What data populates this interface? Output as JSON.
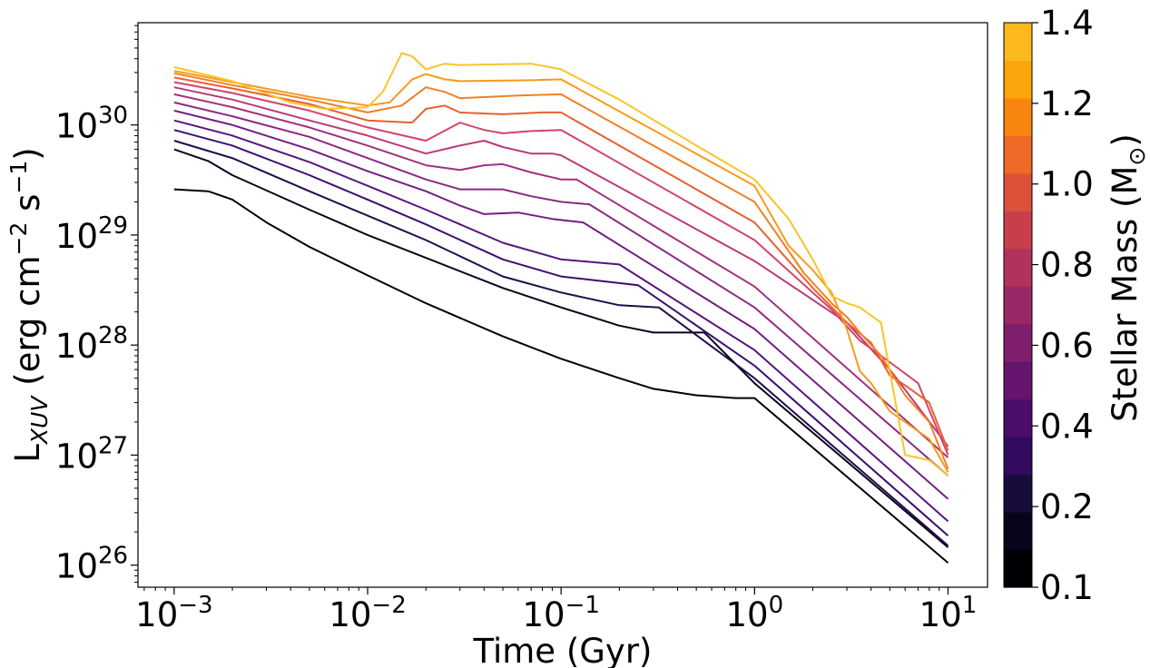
{
  "chart_data": {
    "type": "line",
    "title": "",
    "xlabel": "Time (Gyr)",
    "ylabel": {
      "main": "L",
      "sub": "XUV",
      "rest": " (erg cm",
      "exp1": "−2",
      "mid": " s",
      "exp2": "−1",
      "end": ")"
    },
    "xscale": "log",
    "yscale": "log",
    "xlim": [
      0.00065,
      16
    ],
    "ylim": [
      6.3e+25,
      8.5e+30
    ],
    "x_ticks": [
      {
        "value": 0.001,
        "base": "10",
        "exp": "−3"
      },
      {
        "value": 0.01,
        "base": "10",
        "exp": "−2"
      },
      {
        "value": 0.1,
        "base": "10",
        "exp": "−1"
      },
      {
        "value": 1,
        "base": "10",
        "exp": "0"
      },
      {
        "value": 10,
        "base": "10",
        "exp": "1"
      }
    ],
    "y_ticks": [
      {
        "value": 1e+26,
        "base": "10",
        "exp": "26"
      },
      {
        "value": 1e+27,
        "base": "10",
        "exp": "27"
      },
      {
        "value": 1e+28,
        "base": "10",
        "exp": "28"
      },
      {
        "value": 1e+29,
        "base": "10",
        "exp": "29"
      },
      {
        "value": 1e+30,
        "base": "10",
        "exp": "30"
      }
    ],
    "grid": false,
    "legend": "none",
    "colorbar": {
      "label_main": "Stellar Mass (M",
      "label_sub": "⊙",
      "label_end": ")",
      "range": [
        0.1,
        1.4
      ],
      "ticks": [
        "0.1",
        "0.2",
        "0.4",
        "0.6",
        "0.8",
        "1.0",
        "1.2",
        "1.4"
      ],
      "tick_values": [
        0.1,
        0.2,
        0.4,
        0.6,
        0.8,
        1.0,
        1.2,
        1.4
      ],
      "colors": [
        "#000004",
        "#07051b",
        "#180c3c",
        "#320a5e",
        "#4b0c6b",
        "#65156e",
        "#7e1e6c",
        "#982766",
        "#b1325a",
        "#c83f4b",
        "#dd513a",
        "#ee6925",
        "#f8850f",
        "#fca50a",
        "#fbb91e"
      ]
    },
    "series": [
      {
        "mass": 0.1,
        "color": "#000004",
        "points": [
          [
            0.001,
            2.6e+29
          ],
          [
            0.0015,
            2.5e+29
          ],
          [
            0.002,
            2.1e+29
          ],
          [
            0.003,
            1.3e+29
          ],
          [
            0.005,
            7.8e+28
          ],
          [
            0.01,
            4.3e+28
          ],
          [
            0.02,
            2.4e+28
          ],
          [
            0.05,
            1.2e+28
          ],
          [
            0.1,
            7.5e+27
          ],
          [
            0.2,
            5e+27
          ],
          [
            0.3,
            4e+27
          ],
          [
            0.5,
            3.5e+27
          ],
          [
            0.8,
            3.3e+27
          ],
          [
            1.0,
            3.3e+27
          ],
          [
            10,
            1.05e+26
          ]
        ]
      },
      {
        "mass": 0.2,
        "color": "#07051b",
        "points": [
          [
            0.001,
            6e+29
          ],
          [
            0.0015,
            4.7e+29
          ],
          [
            0.002,
            3.5e+29
          ],
          [
            0.005,
            1.7e+29
          ],
          [
            0.01,
            1e+29
          ],
          [
            0.02,
            6.2e+28
          ],
          [
            0.05,
            3.3e+28
          ],
          [
            0.1,
            2.2e+28
          ],
          [
            0.2,
            1.5e+28
          ],
          [
            0.3,
            1.3e+28
          ],
          [
            0.45,
            1.3e+28
          ],
          [
            0.55,
            1.3e+28
          ],
          [
            1.0,
            4.5e+27
          ],
          [
            10,
            1.45e+26
          ]
        ]
      },
      {
        "mass": 0.3,
        "color": "#210c4a",
        "points": [
          [
            0.001,
            7.2e+29
          ],
          [
            0.002,
            5e+29
          ],
          [
            0.005,
            2.5e+29
          ],
          [
            0.01,
            1.5e+29
          ],
          [
            0.02,
            9e+28
          ],
          [
            0.05,
            4.2e+28
          ],
          [
            0.1,
            3e+28
          ],
          [
            0.2,
            2.3e+28
          ],
          [
            0.32,
            2.2e+28
          ],
          [
            1.0,
            5e+27
          ],
          [
            10,
            1.5e+26
          ]
        ]
      },
      {
        "mass": 0.4,
        "color": "#3b0f70",
        "points": [
          [
            0.001,
            9e+29
          ],
          [
            0.002,
            6.5e+29
          ],
          [
            0.005,
            3.5e+29
          ],
          [
            0.01,
            2.1e+29
          ],
          [
            0.02,
            1.25e+29
          ],
          [
            0.05,
            6e+28
          ],
          [
            0.1,
            4.2e+28
          ],
          [
            0.25,
            3.5e+28
          ],
          [
            1.0,
            6.5e+27
          ],
          [
            10,
            1.85e+26
          ]
        ]
      },
      {
        "mass": 0.5,
        "color": "#57157e",
        "points": [
          [
            0.001,
            1.1e+30
          ],
          [
            0.002,
            8e+29
          ],
          [
            0.005,
            4.6e+29
          ],
          [
            0.01,
            2.8e+29
          ],
          [
            0.02,
            1.7e+29
          ],
          [
            0.05,
            8.5e+28
          ],
          [
            0.1,
            6e+28
          ],
          [
            0.2,
            5.4e+28
          ],
          [
            1.0,
            9e+27
          ],
          [
            10,
            2.5e+26
          ]
        ]
      },
      {
        "mass": 0.6,
        "color": "#721f81",
        "points": [
          [
            0.001,
            1.35e+30
          ],
          [
            0.002,
            1e+30
          ],
          [
            0.005,
            6e+29
          ],
          [
            0.01,
            3.8e+29
          ],
          [
            0.02,
            2.5e+29
          ],
          [
            0.03,
            1.85e+29
          ],
          [
            0.04,
            1.55e+29
          ],
          [
            0.06,
            1.6e+29
          ],
          [
            0.09,
            1.4e+29
          ],
          [
            0.13,
            1.3e+29
          ],
          [
            1.0,
            1.4e+28
          ],
          [
            10,
            4e+26
          ]
        ]
      },
      {
        "mass": 0.7,
        "color": "#8c2981",
        "points": [
          [
            0.001,
            1.6e+30
          ],
          [
            0.002,
            1.2e+30
          ],
          [
            0.005,
            7.8e+29
          ],
          [
            0.01,
            5e+29
          ],
          [
            0.02,
            3.2e+29
          ],
          [
            0.03,
            2.6e+29
          ],
          [
            0.05,
            2.6e+29
          ],
          [
            0.07,
            2.25e+29
          ],
          [
            0.1,
            2e+29
          ],
          [
            0.14,
            1.9e+29
          ],
          [
            1.0,
            2.2e+28
          ],
          [
            10,
            6.5e+26
          ]
        ]
      },
      {
        "mass": 0.8,
        "color": "#a3307e",
        "points": [
          [
            0.001,
            1.9e+30
          ],
          [
            0.002,
            1.45e+30
          ],
          [
            0.005,
            9.5e+29
          ],
          [
            0.01,
            6.5e+29
          ],
          [
            0.02,
            4.3e+29
          ],
          [
            0.03,
            3.9e+29
          ],
          [
            0.04,
            4.3e+29
          ],
          [
            0.05,
            4.4e+29
          ],
          [
            0.07,
            3.7e+29
          ],
          [
            0.1,
            3.2e+29
          ],
          [
            0.12,
            3.2e+29
          ],
          [
            1.0,
            3.4e+28
          ],
          [
            10,
            9.5e+26
          ]
        ]
      },
      {
        "mass": 0.9,
        "color": "#bc3978",
        "points": [
          [
            0.001,
            2.2e+30
          ],
          [
            0.002,
            1.7e+30
          ],
          [
            0.005,
            1.1e+30
          ],
          [
            0.01,
            8e+29
          ],
          [
            0.02,
            5.5e+29
          ],
          [
            0.03,
            6.5e+29
          ],
          [
            0.04,
            7.2e+29
          ],
          [
            0.05,
            6.3e+29
          ],
          [
            0.07,
            5.5e+29
          ],
          [
            0.09,
            5.5e+29
          ],
          [
            0.1,
            5.3e+29
          ],
          [
            1.0,
            5.8e+28
          ],
          [
            3.0,
            1.6e+28
          ],
          [
            5.0,
            6e+27
          ],
          [
            10,
            1.2e+27
          ]
        ]
      },
      {
        "mass": 1.0,
        "color": "#d3436e",
        "points": [
          [
            0.001,
            2.45e+30
          ],
          [
            0.002,
            1.95e+30
          ],
          [
            0.005,
            1.35e+30
          ],
          [
            0.01,
            9.5e+29
          ],
          [
            0.02,
            7.2e+29
          ],
          [
            0.03,
            1.05e+30
          ],
          [
            0.04,
            9e+29
          ],
          [
            0.05,
            8.4e+29
          ],
          [
            0.07,
            8.8e+29
          ],
          [
            0.1,
            9e+29
          ],
          [
            1.0,
            9e+28
          ],
          [
            2.5,
            2.1e+28
          ],
          [
            3.5,
            1.1e+28
          ],
          [
            5.0,
            7e+27
          ],
          [
            7.0,
            4.5e+27
          ],
          [
            10,
            1e+27
          ]
        ]
      },
      {
        "mass": 1.1,
        "color": "#e8602d",
        "points": [
          [
            0.001,
            2.7e+30
          ],
          [
            0.002,
            2.15e+30
          ],
          [
            0.005,
            1.55e+30
          ],
          [
            0.01,
            1.1e+30
          ],
          [
            0.017,
            1.05e+30
          ],
          [
            0.02,
            1.4e+30
          ],
          [
            0.025,
            1.5e+30
          ],
          [
            0.03,
            1.3e+30
          ],
          [
            0.05,
            1.25e+30
          ],
          [
            0.08,
            1.3e+30
          ],
          [
            0.1,
            1.3e+30
          ],
          [
            1.0,
            1.3e+29
          ],
          [
            2.0,
            3.3e+28
          ],
          [
            3.0,
            1.6e+28
          ],
          [
            4.0,
            1.05e+28
          ],
          [
            5.0,
            5.3e+27
          ],
          [
            6.0,
            4.3e+27
          ],
          [
            8.0,
            3e+27
          ],
          [
            10,
            1.1e+27
          ]
        ]
      },
      {
        "mass": 1.2,
        "color": "#f28022",
        "points": [
          [
            0.001,
            2.95e+30
          ],
          [
            0.002,
            2.3e+30
          ],
          [
            0.005,
            1.7e+30
          ],
          [
            0.01,
            1.3e+30
          ],
          [
            0.015,
            1.5e+30
          ],
          [
            0.02,
            2.2e+30
          ],
          [
            0.025,
            2e+30
          ],
          [
            0.03,
            1.75e+30
          ],
          [
            0.06,
            1.85e+30
          ],
          [
            0.1,
            1.9e+30
          ],
          [
            1.0,
            2e+29
          ],
          [
            1.8,
            4.5e+28
          ],
          [
            2.5,
            2.4e+28
          ],
          [
            3.0,
            1.8e+28
          ],
          [
            3.5,
            1.3e+28
          ],
          [
            4.5,
            8e+27
          ],
          [
            6.0,
            3.5e+27
          ],
          [
            8.0,
            2e+27
          ],
          [
            10,
            7.5e+26
          ]
        ]
      },
      {
        "mass": 1.3,
        "color": "#f89a1c",
        "points": [
          [
            0.001,
            3.1e+30
          ],
          [
            0.002,
            2.45e+30
          ],
          [
            0.005,
            1.8e+30
          ],
          [
            0.01,
            1.5e+30
          ],
          [
            0.013,
            1.6e+30
          ],
          [
            0.017,
            2.6e+30
          ],
          [
            0.02,
            2.9e+30
          ],
          [
            0.025,
            2.6e+30
          ],
          [
            0.03,
            2.5e+30
          ],
          [
            0.07,
            2.55e+30
          ],
          [
            0.1,
            2.6e+30
          ],
          [
            1.0,
            2.8e+29
          ],
          [
            1.5,
            8e+28
          ],
          [
            2.0,
            4.8e+28
          ],
          [
            2.5,
            3e+28
          ],
          [
            3.0,
            1.4e+28
          ],
          [
            3.5,
            5.8e+27
          ],
          [
            4.0,
            4.5e+27
          ],
          [
            5.0,
            2.5e+27
          ],
          [
            8.0,
            1.4e+27
          ],
          [
            10,
            7e+26
          ]
        ]
      },
      {
        "mass": 1.4,
        "color": "#f8c52a",
        "points": [
          [
            0.001,
            3.35e+30
          ],
          [
            0.002,
            2.5e+30
          ],
          [
            0.004,
            1.6e+30
          ],
          [
            0.006,
            1.4e+30
          ],
          [
            0.01,
            1.45e+30
          ],
          [
            0.012,
            2e+30
          ],
          [
            0.015,
            4.5e+30
          ],
          [
            0.017,
            4.2e+30
          ],
          [
            0.02,
            3.2e+30
          ],
          [
            0.025,
            3.6e+30
          ],
          [
            0.03,
            3.5e+30
          ],
          [
            0.07,
            3.6e+30
          ],
          [
            0.1,
            3.2e+30
          ],
          [
            0.2,
            1.7e+30
          ],
          [
            0.5,
            6.5e+29
          ],
          [
            1.0,
            3.2e+29
          ],
          [
            1.5,
            1.4e+29
          ],
          [
            2.0,
            6e+28
          ],
          [
            2.5,
            2.8e+28
          ],
          [
            3.0,
            2.4e+28
          ],
          [
            3.5,
            2.2e+28
          ],
          [
            4.5,
            1.6e+28
          ],
          [
            6.0,
            1e+27
          ],
          [
            8.0,
            9e+26
          ],
          [
            10,
            6.5e+26
          ]
        ]
      }
    ]
  }
}
